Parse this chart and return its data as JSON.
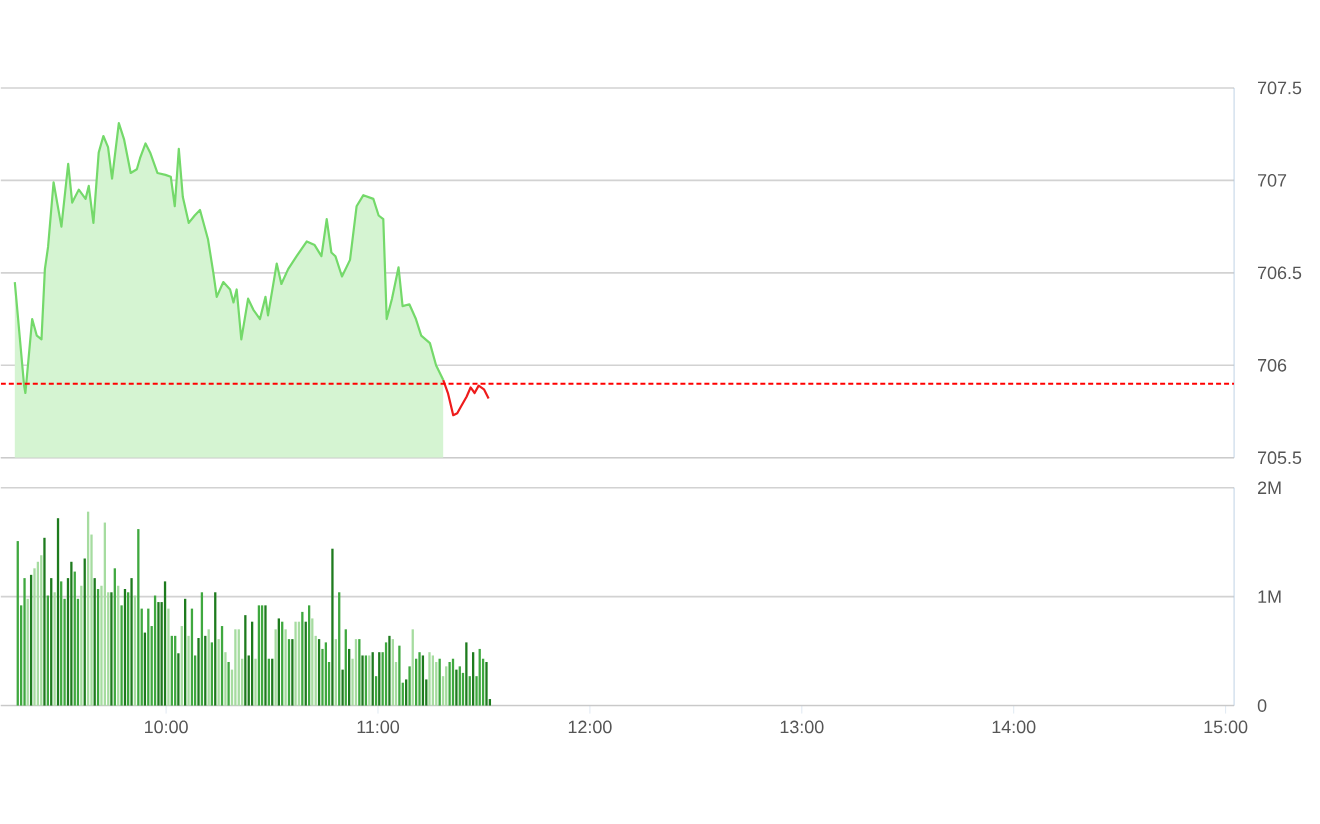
{
  "chart_data": [
    {
      "type": "area",
      "xlim": [
        9.22,
        15.04
      ],
      "ylim": [
        705.5,
        707.5
      ],
      "yticks": [
        705.5,
        706,
        706.5,
        707,
        707.5
      ],
      "grid": "y",
      "tick_labels": "y",
      "line_style": "solid",
      "ref_lines": [
        {
          "axis": "y",
          "value": 705.9,
          "color": "#ff0000",
          "line_style": "dashed"
        }
      ],
      "series": [
        {
          "type": "area",
          "color": "#74d96a",
          "x": [
            9.286,
            9.33,
            9.336,
            9.368,
            9.39,
            9.412,
            9.428,
            9.443,
            9.469,
            9.506,
            9.538,
            9.557,
            9.588,
            9.62,
            9.635,
            9.657,
            9.682,
            9.704,
            9.726,
            9.745,
            9.777,
            9.802,
            9.833,
            9.862,
            9.877,
            9.903,
            9.925,
            9.959,
            9.997,
            10.022,
            10.041,
            10.06,
            10.079,
            10.107,
            10.135,
            10.16,
            10.198,
            10.223,
            10.239,
            10.27,
            10.302,
            10.318,
            10.333,
            10.355,
            10.387,
            10.412,
            10.443,
            10.469,
            10.481,
            10.522,
            10.544,
            10.576,
            10.616,
            10.664,
            10.701,
            10.733,
            10.758,
            10.78,
            10.799,
            10.83,
            10.868,
            10.899,
            10.931,
            10.978,
            11.003,
            11.025,
            11.041,
            11.066,
            11.097,
            11.116,
            11.148,
            11.179,
            11.204,
            11.245,
            11.274,
            11.308
          ],
          "values": [
            706.45,
            705.89,
            705.85,
            706.25,
            706.16,
            706.14,
            706.52,
            706.64,
            706.99,
            706.75,
            707.09,
            706.88,
            706.95,
            706.9,
            706.97,
            706.77,
            707.15,
            707.24,
            707.18,
            707.01,
            707.31,
            707.22,
            707.04,
            707.06,
            707.12,
            707.2,
            707.15,
            707.04,
            707.03,
            707.02,
            706.86,
            707.17,
            706.91,
            706.77,
            706.81,
            706.84,
            706.68,
            706.5,
            706.37,
            706.45,
            706.41,
            706.34,
            706.41,
            706.14,
            706.36,
            706.3,
            706.25,
            706.37,
            706.27,
            706.55,
            706.44,
            706.52,
            706.59,
            706.67,
            706.65,
            706.59,
            706.79,
            706.61,
            706.59,
            706.48,
            706.57,
            706.86,
            706.92,
            706.9,
            706.81,
            706.79,
            706.25,
            706.36,
            706.53,
            706.32,
            706.33,
            706.25,
            706.16,
            706.12,
            706.0,
            705.92
          ]
        },
        {
          "type": "line",
          "color": "#ee1c1c",
          "x": [
            11.308,
            11.33,
            11.355,
            11.374,
            11.393,
            11.418,
            11.437,
            11.456,
            11.475,
            11.5,
            11.522
          ],
          "values": [
            705.92,
            705.85,
            705.73,
            705.74,
            705.78,
            705.83,
            705.88,
            705.85,
            705.89,
            705.87,
            705.82
          ]
        }
      ]
    },
    {
      "type": "bar",
      "xlim": [
        9.22,
        15.04
      ],
      "ylim": [
        0,
        2
      ],
      "grid": "y",
      "xticks": [
        {
          "value": 10,
          "label": "10:00"
        },
        {
          "value": 11,
          "label": "11:00"
        },
        {
          "value": 12,
          "label": "12:00"
        },
        {
          "value": 13,
          "label": "13:00"
        },
        {
          "value": 14,
          "label": "14:00"
        },
        {
          "value": 15,
          "label": "15:00"
        }
      ],
      "yticks": [
        0,
        {
          "value": 1,
          "label": "1M"
        },
        {
          "value": 2,
          "label": "2M"
        }
      ],
      "x": [
        9.3,
        9.316,
        9.332,
        9.347,
        9.363,
        9.379,
        9.395,
        9.411,
        9.426,
        9.442,
        9.458,
        9.474,
        9.49,
        9.505,
        9.521,
        9.537,
        9.553,
        9.569,
        9.584,
        9.6,
        9.616,
        9.632,
        9.648,
        9.663,
        9.679,
        9.695,
        9.711,
        9.727,
        9.742,
        9.758,
        9.774,
        9.79,
        9.806,
        9.821,
        9.837,
        9.853,
        9.869,
        9.885,
        9.9,
        9.916,
        9.932,
        9.948,
        9.964,
        9.979,
        9.995,
        10.011,
        10.027,
        10.043,
        10.058,
        10.074,
        10.09,
        10.106,
        10.122,
        10.137,
        10.153,
        10.169,
        10.185,
        10.201,
        10.216,
        10.232,
        10.248,
        10.264,
        10.28,
        10.295,
        10.311,
        10.327,
        10.343,
        10.359,
        10.374,
        10.39,
        10.406,
        10.422,
        10.438,
        10.453,
        10.469,
        10.485,
        10.501,
        10.517,
        10.532,
        10.548,
        10.564,
        10.58,
        10.596,
        10.611,
        10.627,
        10.643,
        10.659,
        10.675,
        10.69,
        10.706,
        10.722,
        10.738,
        10.754,
        10.769,
        10.785,
        10.801,
        10.817,
        10.833,
        10.848,
        10.864,
        10.88,
        10.896,
        10.912,
        10.927,
        10.943,
        10.959,
        10.975,
        10.991,
        11.006,
        11.022,
        11.038,
        11.054,
        11.07,
        11.085,
        11.101,
        11.117,
        11.133,
        11.149,
        11.164,
        11.18,
        11.196,
        11.212,
        11.228,
        11.243,
        11.259,
        11.275,
        11.291,
        11.307,
        11.322,
        11.338,
        11.354,
        11.37,
        11.386,
        11.401,
        11.417,
        11.433,
        11.449,
        11.465,
        11.48,
        11.496,
        11.512,
        11.528
      ],
      "values": [
        1.51,
        0.92,
        1.17,
        0.98,
        1.2,
        1.26,
        1.32,
        1.38,
        1.54,
        1.01,
        1.17,
        1.04,
        1.72,
        1.14,
        0.98,
        1.17,
        1.32,
        1.23,
        0.98,
        1.1,
        1.35,
        1.78,
        1.57,
        1.17,
        1.07,
        1.1,
        1.68,
        1.04,
        1.04,
        1.26,
        1.1,
        0.92,
        1.07,
        1.04,
        1.17,
        1.01,
        1.62,
        0.89,
        0.67,
        0.89,
        0.73,
        1.01,
        0.95,
        0.95,
        1.14,
        0.89,
        0.64,
        0.64,
        0.48,
        0.73,
        0.98,
        0.64,
        0.89,
        0.46,
        0.62,
        1.04,
        0.64,
        0.7,
        0.58,
        1.04,
        0.61,
        0.73,
        0.49,
        0.4,
        0.33,
        0.7,
        0.7,
        0.43,
        0.83,
        0.46,
        0.77,
        0.43,
        0.92,
        0.92,
        0.92,
        0.43,
        0.43,
        0.7,
        0.8,
        0.77,
        0.7,
        0.61,
        0.61,
        0.77,
        0.77,
        0.86,
        0.77,
        0.92,
        0.8,
        0.64,
        0.61,
        0.52,
        0.58,
        0.4,
        1.44,
        0.61,
        1.04,
        0.33,
        0.7,
        0.52,
        0.43,
        0.61,
        0.61,
        0.46,
        0.46,
        0.46,
        0.49,
        0.27,
        0.49,
        0.49,
        0.58,
        0.64,
        0.61,
        0.4,
        0.55,
        0.21,
        0.24,
        0.36,
        0.7,
        0.43,
        0.49,
        0.46,
        0.24,
        0.49,
        0.46,
        0.4,
        0.43,
        0.27,
        0.36,
        0.4,
        0.43,
        0.33,
        0.36,
        0.3,
        0.58,
        0.27,
        0.49,
        0.27,
        0.52,
        0.43,
        0.4,
        0.06
      ],
      "colors": [
        "#3fa83f",
        "#3fa83f",
        "#3fa83f",
        "#a6dca0",
        "#1e7b1e",
        "#a6dca0",
        "#a6dca0",
        "#a6dca0",
        "#1e7b1e",
        "#3fa83f",
        "#1e7b1e",
        "#a6dca0",
        "#1e7b1e",
        "#3fa83f",
        "#3fa83f",
        "#1e7b1e",
        "#1e7b1e",
        "#3fa83f",
        "#3fa83f",
        "#a6dca0",
        "#1e7b1e",
        "#a6dca0",
        "#a6dca0",
        "#1e7b1e",
        "#3fa83f",
        "#a6dca0",
        "#a6dca0",
        "#a6dca0",
        "#1e7b1e",
        "#3fa83f",
        "#a6dca0",
        "#3fa83f",
        "#1e7b1e",
        "#3fa83f",
        "#1e7b1e",
        "#a6dca0",
        "#3fa83f",
        "#3fa83f",
        "#1e7b1e",
        "#3fa83f",
        "#3fa83f",
        "#3fa83f",
        "#1e7b1e",
        "#1e7b1e",
        "#1e7b1e",
        "#a6dca0",
        "#3fa83f",
        "#3fa83f",
        "#1e7b1e",
        "#a6dca0",
        "#1e7b1e",
        "#a6dca0",
        "#3fa83f",
        "#3fa83f",
        "#1e7b1e",
        "#3fa83f",
        "#1e7b1e",
        "#a6dca0",
        "#3fa83f",
        "#1e7b1e",
        "#a6dca0",
        "#3fa83f",
        "#a6dca0",
        "#3fa83f",
        "#a6dca0",
        "#a6dca0",
        "#a6dca0",
        "#a6dca0",
        "#1e7b1e",
        "#1e7b1e",
        "#1e7b1e",
        "#a6dca0",
        "#3fa83f",
        "#3fa83f",
        "#1e7b1e",
        "#3fa83f",
        "#1e7b1e",
        "#a6dca0",
        "#1e7b1e",
        "#3fa83f",
        "#a6dca0",
        "#3fa83f",
        "#1e7b1e",
        "#a6dca0",
        "#a6dca0",
        "#3fa83f",
        "#1e7b1e",
        "#3fa83f",
        "#a6dca0",
        "#a6dca0",
        "#1e7b1e",
        "#3fa83f",
        "#3fa83f",
        "#3fa83f",
        "#1e7b1e",
        "#a6dca0",
        "#3fa83f",
        "#1e7b1e",
        "#3fa83f",
        "#1e7b1e",
        "#a6dca0",
        "#a6dca0",
        "#3fa83f",
        "#1e7b1e",
        "#3fa83f",
        "#a6dca0",
        "#1e7b1e",
        "#3fa83f",
        "#1e7b1e",
        "#3fa83f",
        "#3fa83f",
        "#1e7b1e",
        "#a6dca0",
        "#a6dca0",
        "#3fa83f",
        "#3fa83f",
        "#1e7b1e",
        "#3fa83f",
        "#a6dca0",
        "#3fa83f",
        "#3fa83f",
        "#1e7b1e",
        "#1e7b1e",
        "#a6dca0",
        "#a6dca0",
        "#a6dca0",
        "#3fa83f",
        "#a6dca0",
        "#a6dca0",
        "#3fa83f",
        "#3fa83f",
        "#1e7b1e",
        "#3fa83f",
        "#3fa83f",
        "#1e7b1e",
        "#3fa83f",
        "#1e7b1e",
        "#3fa83f",
        "#3fa83f",
        "#3fa83f",
        "#1e7b1e",
        "#1e7b1e"
      ]
    }
  ]
}
